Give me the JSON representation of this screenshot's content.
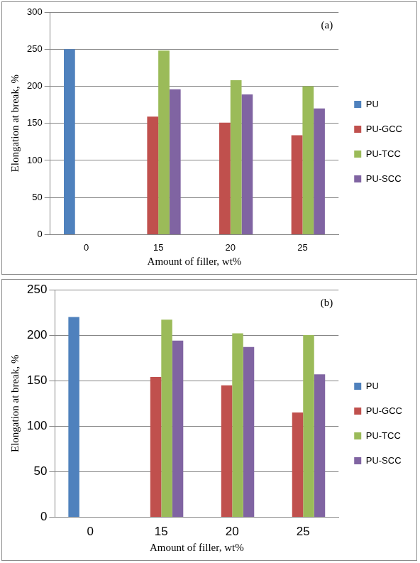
{
  "chart_data": [
    {
      "type": "bar",
      "annotation": "(a)",
      "x_label": "Amount of filler, wt%",
      "y_label": "Elongation at break, %",
      "categories": [
        "0",
        "15",
        "20",
        "25"
      ],
      "series": [
        {
          "name": "PU",
          "color": "#4f81bd",
          "values": [
            250,
            null,
            null,
            null
          ]
        },
        {
          "name": "PU-GCC",
          "color": "#c0504d",
          "values": [
            null,
            159,
            151,
            134
          ]
        },
        {
          "name": "PU-TCC",
          "color": "#9bbb59",
          "values": [
            null,
            248,
            208,
            200
          ]
        },
        {
          "name": "PU-SCC",
          "color": "#8064a2",
          "values": [
            null,
            196,
            189,
            170
          ]
        }
      ],
      "ylim": [
        0,
        300
      ],
      "yticks": [
        0,
        50,
        100,
        150,
        200,
        250,
        300
      ],
      "grid": true,
      "legend": "right"
    },
    {
      "type": "bar",
      "annotation": "(b)",
      "x_label": "Amount of filler, wt%",
      "y_label": "Elongation at break, %",
      "categories": [
        "0",
        "15",
        "20",
        "25"
      ],
      "series": [
        {
          "name": "PU",
          "color": "#4f81bd",
          "values": [
            220,
            null,
            null,
            null
          ]
        },
        {
          "name": "PU-GCC",
          "color": "#c0504d",
          "values": [
            null,
            154,
            145,
            115
          ]
        },
        {
          "name": "PU-TCC",
          "color": "#9bbb59",
          "values": [
            null,
            217,
            202,
            200
          ]
        },
        {
          "name": "PU-SCC",
          "color": "#8064a2",
          "values": [
            null,
            194,
            187,
            157
          ]
        }
      ],
      "ylim": [
        0,
        250
      ],
      "yticks": [
        0,
        50,
        100,
        150,
        200,
        250
      ],
      "grid": true,
      "legend": "right"
    }
  ]
}
